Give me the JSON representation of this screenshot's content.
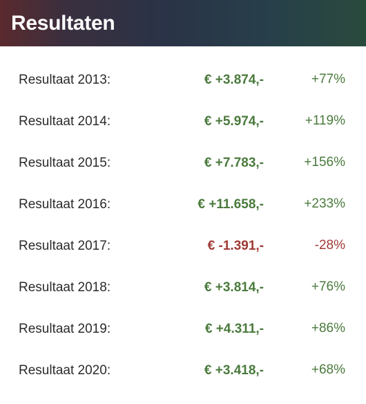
{
  "header": {
    "title": "Resultaten"
  },
  "colors": {
    "positive": "#4a7a3c",
    "negative": "#a03a35"
  },
  "rows": [
    {
      "label": "Resultaat 2013:",
      "amount": "€ +3.874,-",
      "percent": "+77%",
      "sign": "positive"
    },
    {
      "label": "Resultaat 2014:",
      "amount": "€ +5.974,-",
      "percent": "+119%",
      "sign": "positive"
    },
    {
      "label": "Resultaat 2015:",
      "amount": "€ +7.783,-",
      "percent": "+156%",
      "sign": "positive"
    },
    {
      "label": "Resultaat 2016:",
      "amount": "€ +11.658,-",
      "percent": "+233%",
      "sign": "positive"
    },
    {
      "label": "Resultaat 2017:",
      "amount": "€ -1.391,-",
      "percent": "-28%",
      "sign": "negative"
    },
    {
      "label": "Resultaat 2018:",
      "amount": "€ +3.814,-",
      "percent": "+76%",
      "sign": "positive"
    },
    {
      "label": "Resultaat 2019:",
      "amount": "€ +4.311,-",
      "percent": "+86%",
      "sign": "positive"
    },
    {
      "label": "Resultaat 2020:",
      "amount": "€ +3.418,-",
      "percent": "+68%",
      "sign": "positive"
    }
  ]
}
